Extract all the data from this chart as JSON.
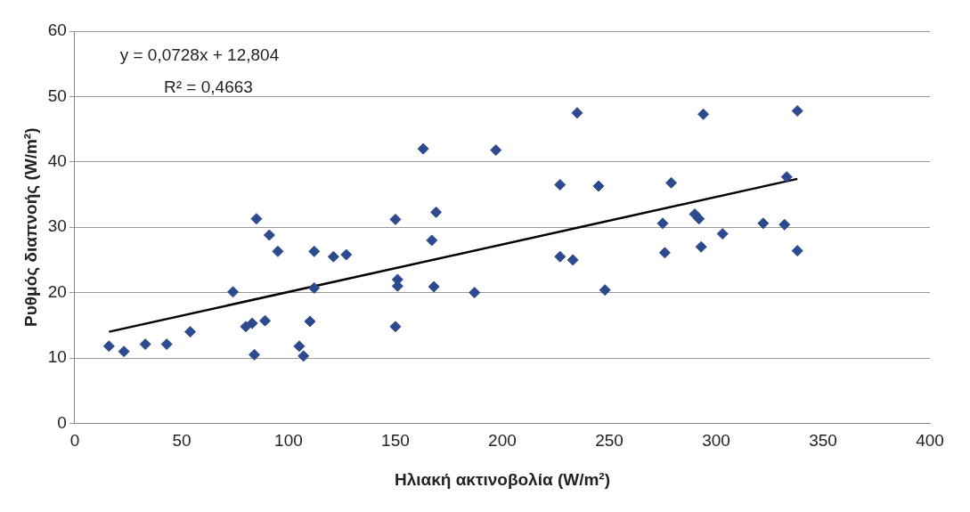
{
  "chart_data": {
    "type": "scatter",
    "xlabel": "Ηλιακή ακτινοβολία (W/m²)",
    "ylabel": "Ρυθμός διαπνοής (W/m²)",
    "annotations": [
      "y = 0,0728x + 12,804",
      "R² = 0,4663"
    ],
    "xlim": [
      0,
      400
    ],
    "xticks": [
      0,
      50,
      100,
      150,
      200,
      250,
      300,
      350,
      400
    ],
    "ylim": [
      0,
      60
    ],
    "yticks": [
      0,
      10,
      20,
      30,
      40,
      50,
      60
    ],
    "grid": "y",
    "legend": false,
    "marker": "diamond",
    "series": [
      {
        "color": "#2e4a8e",
        "x": [
          16,
          23,
          33,
          43,
          54,
          74,
          80,
          83,
          84,
          85,
          89,
          91,
          95,
          105,
          107,
          110,
          112,
          112,
          121,
          127,
          150,
          151,
          151,
          150,
          163,
          167,
          168,
          169,
          187,
          197,
          227,
          227,
          233,
          235,
          245,
          248,
          275,
          276,
          279,
          290,
          292,
          293,
          294,
          303,
          322,
          332,
          333,
          338,
          338
        ],
        "values": [
          11.8,
          11,
          12.1,
          12.1,
          14,
          20.1,
          14.8,
          15.3,
          10.5,
          31.3,
          15.7,
          28.8,
          26.3,
          11.8,
          10.3,
          15.6,
          26.3,
          20.7,
          25.5,
          25.8,
          31.2,
          21,
          22,
          14.8,
          42,
          28,
          20.9,
          32.3,
          20,
          41.8,
          36.5,
          25.5,
          25,
          47.5,
          36.3,
          20.4,
          30.6,
          26.1,
          36.8,
          32,
          31.3,
          27,
          47.3,
          29,
          30.6,
          30.4,
          37.7,
          47.8,
          26.4
        ]
      },
      {
        "type": "line",
        "color": "#000000",
        "x": [
          16,
          338
        ],
        "values": [
          14.0,
          37.4
        ],
        "marker": "none",
        "line_style": "solid"
      }
    ]
  }
}
